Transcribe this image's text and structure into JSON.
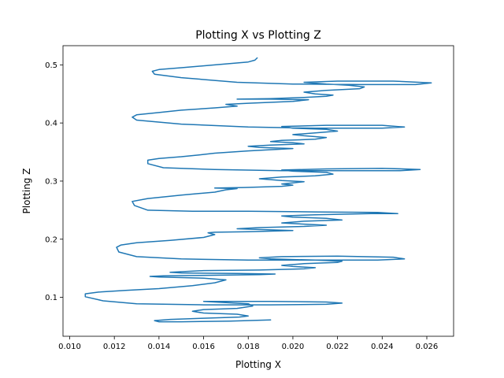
{
  "chart_data": {
    "type": "line",
    "title": "Plotting X vs Plotting Z",
    "xlabel": "Plotting X",
    "ylabel": "Plotting Z",
    "xlim": [
      0.0097,
      0.0272
    ],
    "ylim": [
      0.033,
      0.533
    ],
    "xticks": [
      0.01,
      0.012,
      0.014,
      0.016,
      0.018,
      0.02,
      0.022,
      0.024,
      0.026
    ],
    "xtick_labels": [
      "0.010",
      "0.012",
      "0.014",
      "0.016",
      "0.018",
      "0.020",
      "0.022",
      "0.024",
      "0.026"
    ],
    "yticks": [
      0.1,
      0.2,
      0.3,
      0.4,
      0.5
    ],
    "ytick_labels": [
      "0.1",
      "0.2",
      "0.3",
      "0.4",
      "0.5"
    ],
    "grid": false,
    "series": [
      {
        "color": "#1f77b4",
        "points": [
          [
            0.019,
            0.061
          ],
          [
            0.0172,
            0.059
          ],
          [
            0.015,
            0.058
          ],
          [
            0.014,
            0.058
          ],
          [
            0.0138,
            0.06
          ],
          [
            0.0145,
            0.062
          ],
          [
            0.016,
            0.064
          ],
          [
            0.0176,
            0.066
          ],
          [
            0.018,
            0.068
          ],
          [
            0.0175,
            0.071
          ],
          [
            0.016,
            0.073
          ],
          [
            0.0155,
            0.076
          ],
          [
            0.016,
            0.079
          ],
          [
            0.0175,
            0.081
          ],
          [
            0.0182,
            0.085
          ],
          [
            0.018,
            0.089
          ],
          [
            0.0165,
            0.092
          ],
          [
            0.016,
            0.093
          ],
          [
            0.019,
            0.093
          ],
          [
            0.0215,
            0.092
          ],
          [
            0.0222,
            0.09
          ],
          [
            0.0215,
            0.088
          ],
          [
            0.019,
            0.087
          ],
          [
            0.016,
            0.087
          ],
          [
            0.013,
            0.089
          ],
          [
            0.0115,
            0.094
          ],
          [
            0.0107,
            0.101
          ],
          [
            0.0107,
            0.106
          ],
          [
            0.0113,
            0.109
          ],
          [
            0.0125,
            0.112
          ],
          [
            0.014,
            0.115
          ],
          [
            0.0155,
            0.12
          ],
          [
            0.0165,
            0.125
          ],
          [
            0.017,
            0.13
          ],
          [
            0.016,
            0.133
          ],
          [
            0.014,
            0.135
          ],
          [
            0.0136,
            0.136
          ],
          [
            0.0142,
            0.137
          ],
          [
            0.0165,
            0.138
          ],
          [
            0.0185,
            0.139
          ],
          [
            0.0192,
            0.14
          ],
          [
            0.0175,
            0.141
          ],
          [
            0.015,
            0.142
          ],
          [
            0.0145,
            0.143
          ],
          [
            0.016,
            0.146
          ],
          [
            0.0185,
            0.147
          ],
          [
            0.0205,
            0.149
          ],
          [
            0.021,
            0.151
          ],
          [
            0.02,
            0.153
          ],
          [
            0.0195,
            0.155
          ],
          [
            0.0205,
            0.158
          ],
          [
            0.022,
            0.16
          ],
          [
            0.0222,
            0.162
          ],
          [
            0.021,
            0.164
          ],
          [
            0.019,
            0.166
          ],
          [
            0.0185,
            0.168
          ],
          [
            0.0195,
            0.17
          ],
          [
            0.022,
            0.171
          ],
          [
            0.0245,
            0.169
          ],
          [
            0.025,
            0.166
          ],
          [
            0.0238,
            0.164
          ],
          [
            0.021,
            0.164
          ],
          [
            0.018,
            0.164
          ],
          [
            0.015,
            0.166
          ],
          [
            0.013,
            0.17
          ],
          [
            0.0122,
            0.178
          ],
          [
            0.0121,
            0.186
          ],
          [
            0.0123,
            0.19
          ],
          [
            0.013,
            0.194
          ],
          [
            0.0145,
            0.198
          ],
          [
            0.016,
            0.203
          ],
          [
            0.0165,
            0.208
          ],
          [
            0.0162,
            0.211
          ],
          [
            0.0165,
            0.212
          ],
          [
            0.018,
            0.213
          ],
          [
            0.02,
            0.215
          ],
          [
            0.019,
            0.216
          ],
          [
            0.0175,
            0.218
          ],
          [
            0.0185,
            0.22
          ],
          [
            0.0205,
            0.222
          ],
          [
            0.0215,
            0.224
          ],
          [
            0.0205,
            0.226
          ],
          [
            0.0195,
            0.228
          ],
          [
            0.0205,
            0.231
          ],
          [
            0.0222,
            0.233
          ],
          [
            0.0215,
            0.236
          ],
          [
            0.02,
            0.238
          ],
          [
            0.0195,
            0.24
          ],
          [
            0.021,
            0.242
          ],
          [
            0.0235,
            0.244
          ],
          [
            0.0247,
            0.244
          ],
          [
            0.0238,
            0.246
          ],
          [
            0.021,
            0.247
          ],
          [
            0.018,
            0.248
          ],
          [
            0.0155,
            0.248
          ],
          [
            0.0135,
            0.25
          ],
          [
            0.0129,
            0.258
          ],
          [
            0.0128,
            0.265
          ],
          [
            0.0135,
            0.27
          ],
          [
            0.015,
            0.276
          ],
          [
            0.0165,
            0.281
          ],
          [
            0.017,
            0.285
          ],
          [
            0.0175,
            0.287
          ],
          [
            0.0165,
            0.288
          ],
          [
            0.0178,
            0.289
          ],
          [
            0.0195,
            0.291
          ],
          [
            0.02,
            0.293
          ],
          [
            0.0195,
            0.295
          ],
          [
            0.02,
            0.297
          ],
          [
            0.0205,
            0.299
          ],
          [
            0.0195,
            0.301
          ],
          [
            0.0185,
            0.304
          ],
          [
            0.0195,
            0.307
          ],
          [
            0.021,
            0.309
          ],
          [
            0.0218,
            0.312
          ],
          [
            0.0215,
            0.315
          ],
          [
            0.02,
            0.317
          ],
          [
            0.0195,
            0.319
          ],
          [
            0.0215,
            0.321
          ],
          [
            0.024,
            0.322
          ],
          [
            0.0257,
            0.32
          ],
          [
            0.0248,
            0.318
          ],
          [
            0.0225,
            0.318
          ],
          [
            0.0195,
            0.318
          ],
          [
            0.0165,
            0.32
          ],
          [
            0.0142,
            0.323
          ],
          [
            0.0135,
            0.33
          ],
          [
            0.0135,
            0.336
          ],
          [
            0.014,
            0.339
          ],
          [
            0.015,
            0.342
          ],
          [
            0.0158,
            0.345
          ],
          [
            0.0165,
            0.348
          ],
          [
            0.018,
            0.352
          ],
          [
            0.0195,
            0.355
          ],
          [
            0.02,
            0.356
          ],
          [
            0.0185,
            0.358
          ],
          [
            0.018,
            0.36
          ],
          [
            0.019,
            0.362
          ],
          [
            0.0205,
            0.364
          ],
          [
            0.02,
            0.366
          ],
          [
            0.019,
            0.368
          ],
          [
            0.0195,
            0.37
          ],
          [
            0.021,
            0.372
          ],
          [
            0.0215,
            0.375
          ],
          [
            0.0205,
            0.378
          ],
          [
            0.02,
            0.38
          ],
          [
            0.021,
            0.383
          ],
          [
            0.022,
            0.386
          ],
          [
            0.0215,
            0.389
          ],
          [
            0.02,
            0.391
          ],
          [
            0.0195,
            0.394
          ],
          [
            0.0215,
            0.396
          ],
          [
            0.024,
            0.396
          ],
          [
            0.025,
            0.393
          ],
          [
            0.024,
            0.391
          ],
          [
            0.021,
            0.391
          ],
          [
            0.018,
            0.393
          ],
          [
            0.015,
            0.398
          ],
          [
            0.013,
            0.405
          ],
          [
            0.0128,
            0.41
          ],
          [
            0.013,
            0.414
          ],
          [
            0.014,
            0.418
          ],
          [
            0.015,
            0.422
          ],
          [
            0.0165,
            0.426
          ],
          [
            0.0175,
            0.429
          ],
          [
            0.017,
            0.432
          ],
          [
            0.018,
            0.434
          ],
          [
            0.02,
            0.437
          ],
          [
            0.0207,
            0.44
          ],
          [
            0.019,
            0.441
          ],
          [
            0.0175,
            0.441
          ],
          [
            0.019,
            0.442
          ],
          [
            0.0205,
            0.444
          ],
          [
            0.0215,
            0.446
          ],
          [
            0.0218,
            0.448
          ],
          [
            0.021,
            0.45
          ],
          [
            0.0205,
            0.453
          ],
          [
            0.0215,
            0.456
          ],
          [
            0.023,
            0.459
          ],
          [
            0.0232,
            0.462
          ],
          [
            0.0225,
            0.465
          ],
          [
            0.0215,
            0.467
          ],
          [
            0.0205,
            0.47
          ],
          [
            0.022,
            0.472
          ],
          [
            0.0245,
            0.472
          ],
          [
            0.0262,
            0.469
          ],
          [
            0.0255,
            0.466
          ],
          [
            0.023,
            0.466
          ],
          [
            0.02,
            0.467
          ],
          [
            0.0175,
            0.47
          ],
          [
            0.015,
            0.478
          ],
          [
            0.0138,
            0.484
          ],
          [
            0.0137,
            0.489
          ],
          [
            0.014,
            0.492
          ],
          [
            0.015,
            0.495
          ],
          [
            0.0165,
            0.5
          ],
          [
            0.018,
            0.505
          ],
          [
            0.0183,
            0.508
          ],
          [
            0.0184,
            0.512
          ]
        ]
      }
    ]
  }
}
